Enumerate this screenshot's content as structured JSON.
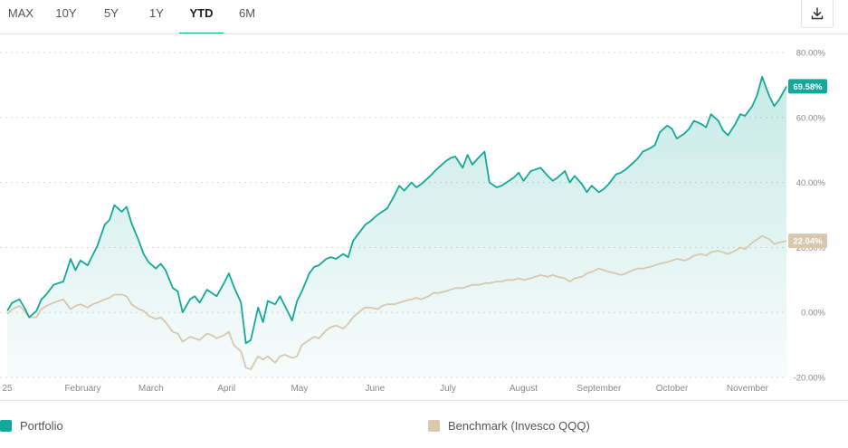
{
  "range_tabs": [
    "MAX",
    "10Y",
    "5Y",
    "1Y",
    "YTD",
    "6M"
  ],
  "active_tab": "YTD",
  "download_icon": "download-icon",
  "colors": {
    "portfolio": "#14a89a",
    "benchmark": "#d8c8ae",
    "grid": "#d9d9d9",
    "axis_text": "#888888"
  },
  "chart_data": {
    "type": "area",
    "x_unit": "2025 date (month-day)",
    "x_ticks": [
      "25",
      "February",
      "March",
      "April",
      "May",
      "June",
      "July",
      "August",
      "September",
      "October",
      "November"
    ],
    "y_ticks": [
      "80.00%",
      "60.00%",
      "40.00%",
      "20.00%",
      "0.00%",
      "-20.00%"
    ],
    "ylim": [
      -20,
      80
    ],
    "grid": "horizontal dashed",
    "legend_position": "bottom",
    "series": [
      {
        "name": "Portfolio",
        "end_label": "69.58%",
        "points": [
          [
            "01-01",
            0.5
          ],
          [
            "01-03",
            3.0
          ],
          [
            "01-06",
            4.0
          ],
          [
            "01-08",
            1.5
          ],
          [
            "01-10",
            -1.5
          ],
          [
            "01-13",
            0.5
          ],
          [
            "01-15",
            4.0
          ],
          [
            "01-17",
            5.5
          ],
          [
            "01-20",
            8.5
          ],
          [
            "01-22",
            9.0
          ],
          [
            "01-24",
            9.5
          ],
          [
            "01-27",
            16.5
          ],
          [
            "01-29",
            13.0
          ],
          [
            "01-31",
            16.0
          ],
          [
            "02-03",
            14.5
          ],
          [
            "02-05",
            17.5
          ],
          [
            "02-07",
            20.5
          ],
          [
            "02-10",
            27.0
          ],
          [
            "02-12",
            28.5
          ],
          [
            "02-14",
            33.0
          ],
          [
            "02-17",
            31.0
          ],
          [
            "02-19",
            32.5
          ],
          [
            "02-21",
            27.5
          ],
          [
            "02-24",
            22.0
          ],
          [
            "02-26",
            18.0
          ],
          [
            "02-28",
            15.5
          ],
          [
            "03-03",
            13.5
          ],
          [
            "03-05",
            15.0
          ],
          [
            "03-07",
            13.0
          ],
          [
            "03-10",
            7.5
          ],
          [
            "03-12",
            6.5
          ],
          [
            "03-14",
            0.0
          ],
          [
            "03-17",
            4.0
          ],
          [
            "03-19",
            5.0
          ],
          [
            "03-21",
            3.0
          ],
          [
            "03-24",
            7.0
          ],
          [
            "03-26",
            6.0
          ],
          [
            "03-28",
            5.0
          ],
          [
            "03-31",
            9.0
          ],
          [
            "04-02",
            12.0
          ],
          [
            "04-04",
            8.0
          ],
          [
            "04-07",
            3.0
          ],
          [
            "04-09",
            -9.5
          ],
          [
            "04-11",
            -8.5
          ],
          [
            "04-14",
            1.5
          ],
          [
            "04-16",
            -3.0
          ],
          [
            "04-18",
            3.5
          ],
          [
            "04-21",
            2.5
          ],
          [
            "04-23",
            5.0
          ],
          [
            "04-25",
            2.0
          ],
          [
            "04-28",
            -2.5
          ],
          [
            "04-30",
            3.5
          ],
          [
            "05-02",
            6.5
          ],
          [
            "05-05",
            12.0
          ],
          [
            "05-07",
            14.0
          ],
          [
            "05-09",
            14.5
          ],
          [
            "05-12",
            16.5
          ],
          [
            "05-14",
            17.0
          ],
          [
            "05-16",
            16.5
          ],
          [
            "05-19",
            18.0
          ],
          [
            "05-21",
            17.0
          ],
          [
            "05-23",
            22.0
          ],
          [
            "05-26",
            25.0
          ],
          [
            "05-28",
            27.0
          ],
          [
            "05-30",
            28.0
          ],
          [
            "06-02",
            30.0
          ],
          [
            "06-04",
            31.0
          ],
          [
            "06-06",
            32.0
          ],
          [
            "06-09",
            36.0
          ],
          [
            "06-11",
            39.0
          ],
          [
            "06-13",
            37.5
          ],
          [
            "06-16",
            40.0
          ],
          [
            "06-18",
            38.5
          ],
          [
            "06-20",
            39.5
          ],
          [
            "06-23",
            41.5
          ],
          [
            "06-25",
            43.0
          ],
          [
            "06-27",
            44.5
          ],
          [
            "06-30",
            46.5
          ],
          [
            "07-02",
            47.5
          ],
          [
            "07-04",
            48.0
          ],
          [
            "07-07",
            44.5
          ],
          [
            "07-09",
            48.5
          ],
          [
            "07-11",
            45.5
          ],
          [
            "07-14",
            48.0
          ],
          [
            "07-16",
            49.5
          ],
          [
            "07-18",
            40.0
          ],
          [
            "07-21",
            38.5
          ],
          [
            "07-23",
            39.0
          ],
          [
            "07-25",
            40.0
          ],
          [
            "07-28",
            41.5
          ],
          [
            "07-30",
            43.0
          ],
          [
            "08-01",
            40.5
          ],
          [
            "08-04",
            43.5
          ],
          [
            "08-06",
            44.0
          ],
          [
            "08-08",
            44.5
          ],
          [
            "08-11",
            42.0
          ],
          [
            "08-13",
            40.5
          ],
          [
            "08-15",
            41.5
          ],
          [
            "08-18",
            43.5
          ],
          [
            "08-20",
            40.0
          ],
          [
            "08-22",
            42.0
          ],
          [
            "08-25",
            39.5
          ],
          [
            "08-27",
            37.0
          ],
          [
            "08-29",
            39.0
          ],
          [
            "09-01",
            37.0
          ],
          [
            "09-03",
            38.0
          ],
          [
            "09-05",
            39.5
          ],
          [
            "09-08",
            42.5
          ],
          [
            "09-10",
            43.0
          ],
          [
            "09-12",
            44.0
          ],
          [
            "09-15",
            46.0
          ],
          [
            "09-17",
            47.5
          ],
          [
            "09-19",
            49.5
          ],
          [
            "09-22",
            50.5
          ],
          [
            "09-24",
            51.5
          ],
          [
            "09-26",
            55.5
          ],
          [
            "09-29",
            57.5
          ],
          [
            "10-01",
            56.5
          ],
          [
            "10-03",
            53.5
          ],
          [
            "10-06",
            55.0
          ],
          [
            "10-08",
            56.5
          ],
          [
            "10-10",
            59.0
          ],
          [
            "10-13",
            58.0
          ],
          [
            "10-15",
            57.0
          ],
          [
            "10-17",
            61.0
          ],
          [
            "10-20",
            59.0
          ],
          [
            "10-22",
            56.0
          ],
          [
            "10-24",
            54.5
          ],
          [
            "10-27",
            58.0
          ],
          [
            "10-29",
            61.0
          ],
          [
            "10-31",
            60.5
          ],
          [
            "11-03",
            63.5
          ],
          [
            "11-05",
            67.0
          ],
          [
            "11-07",
            72.5
          ],
          [
            "11-10",
            66.5
          ],
          [
            "11-12",
            63.5
          ],
          [
            "11-14",
            65.5
          ],
          [
            "11-17",
            69.58
          ]
        ]
      },
      {
        "name": "Benchmark (Invesco QQQ)",
        "end_label": "22.04%",
        "points": [
          [
            "01-01",
            -0.5
          ],
          [
            "01-03",
            1.0
          ],
          [
            "01-06",
            2.0
          ],
          [
            "01-08",
            0.5
          ],
          [
            "01-10",
            -1.5
          ],
          [
            "01-13",
            -1.5
          ],
          [
            "01-15",
            1.0
          ],
          [
            "01-17",
            2.0
          ],
          [
            "01-20",
            3.0
          ],
          [
            "01-22",
            3.5
          ],
          [
            "01-24",
            4.0
          ],
          [
            "01-27",
            1.0
          ],
          [
            "01-29",
            2.0
          ],
          [
            "01-31",
            2.5
          ],
          [
            "02-03",
            1.5
          ],
          [
            "02-05",
            2.5
          ],
          [
            "02-07",
            3.0
          ],
          [
            "02-10",
            4.0
          ],
          [
            "02-12",
            4.5
          ],
          [
            "02-14",
            5.5
          ],
          [
            "02-17",
            5.5
          ],
          [
            "02-19",
            5.0
          ],
          [
            "02-21",
            2.5
          ],
          [
            "02-24",
            1.0
          ],
          [
            "02-26",
            0.5
          ],
          [
            "02-28",
            -1.0
          ],
          [
            "03-03",
            -2.0
          ],
          [
            "03-05",
            -1.5
          ],
          [
            "03-07",
            -3.0
          ],
          [
            "03-10",
            -6.0
          ],
          [
            "03-12",
            -6.5
          ],
          [
            "03-14",
            -9.0
          ],
          [
            "03-17",
            -7.5
          ],
          [
            "03-19",
            -8.0
          ],
          [
            "03-21",
            -8.5
          ],
          [
            "03-24",
            -6.5
          ],
          [
            "03-26",
            -7.0
          ],
          [
            "03-28",
            -8.0
          ],
          [
            "03-31",
            -7.0
          ],
          [
            "04-02",
            -6.0
          ],
          [
            "04-04",
            -10.0
          ],
          [
            "04-07",
            -12.0
          ],
          [
            "04-09",
            -17.0
          ],
          [
            "04-11",
            -17.5
          ],
          [
            "04-14",
            -13.5
          ],
          [
            "04-16",
            -14.5
          ],
          [
            "04-18",
            -13.5
          ],
          [
            "04-21",
            -15.5
          ],
          [
            "04-23",
            -13.5
          ],
          [
            "04-25",
            -13.0
          ],
          [
            "04-28",
            -14.0
          ],
          [
            "04-30",
            -13.5
          ],
          [
            "05-02",
            -10.0
          ],
          [
            "05-05",
            -8.5
          ],
          [
            "05-07",
            -7.5
          ],
          [
            "05-09",
            -8.0
          ],
          [
            "05-12",
            -5.5
          ],
          [
            "05-14",
            -4.5
          ],
          [
            "05-16",
            -4.0
          ],
          [
            "05-19",
            -5.0
          ],
          [
            "05-21",
            -3.5
          ],
          [
            "05-23",
            -1.5
          ],
          [
            "05-26",
            0.5
          ],
          [
            "05-28",
            1.5
          ],
          [
            "05-30",
            1.5
          ],
          [
            "06-02",
            1.0
          ],
          [
            "06-04",
            2.0
          ],
          [
            "06-06",
            2.5
          ],
          [
            "06-09",
            2.5
          ],
          [
            "06-11",
            3.0
          ],
          [
            "06-13",
            3.5
          ],
          [
            "06-16",
            4.0
          ],
          [
            "06-18",
            4.5
          ],
          [
            "06-20",
            4.0
          ],
          [
            "06-23",
            5.0
          ],
          [
            "06-25",
            6.0
          ],
          [
            "06-27",
            6.0
          ],
          [
            "06-30",
            6.5
          ],
          [
            "07-02",
            7.0
          ],
          [
            "07-04",
            7.5
          ],
          [
            "07-07",
            7.5
          ],
          [
            "07-09",
            8.0
          ],
          [
            "07-11",
            8.5
          ],
          [
            "07-14",
            8.5
          ],
          [
            "07-16",
            9.0
          ],
          [
            "07-18",
            9.0
          ],
          [
            "07-21",
            9.5
          ],
          [
            "07-23",
            9.5
          ],
          [
            "07-25",
            10.0
          ],
          [
            "07-28",
            10.0
          ],
          [
            "07-30",
            10.5
          ],
          [
            "08-01",
            10.0
          ],
          [
            "08-04",
            10.5
          ],
          [
            "08-06",
            11.0
          ],
          [
            "08-08",
            11.5
          ],
          [
            "08-11",
            11.0
          ],
          [
            "08-13",
            11.5
          ],
          [
            "08-15",
            11.0
          ],
          [
            "08-18",
            10.5
          ],
          [
            "08-20",
            9.5
          ],
          [
            "08-22",
            10.5
          ],
          [
            "08-25",
            11.0
          ],
          [
            "08-27",
            12.0
          ],
          [
            "08-29",
            12.5
          ],
          [
            "09-01",
            13.5
          ],
          [
            "09-03",
            13.0
          ],
          [
            "09-05",
            12.5
          ],
          [
            "09-08",
            12.0
          ],
          [
            "09-10",
            11.5
          ],
          [
            "09-12",
            12.0
          ],
          [
            "09-15",
            13.0
          ],
          [
            "09-17",
            13.5
          ],
          [
            "09-19",
            13.5
          ],
          [
            "09-22",
            14.0
          ],
          [
            "09-24",
            14.5
          ],
          [
            "09-26",
            15.0
          ],
          [
            "09-29",
            15.5
          ],
          [
            "10-01",
            16.0
          ],
          [
            "10-03",
            16.5
          ],
          [
            "10-06",
            16.0
          ],
          [
            "10-08",
            16.5
          ],
          [
            "10-10",
            17.5
          ],
          [
            "10-13",
            18.0
          ],
          [
            "10-15",
            17.5
          ],
          [
            "10-17",
            18.5
          ],
          [
            "10-20",
            19.0
          ],
          [
            "10-22",
            18.5
          ],
          [
            "10-24",
            18.0
          ],
          [
            "10-27",
            19.0
          ],
          [
            "10-29",
            20.0
          ],
          [
            "10-31",
            19.5
          ],
          [
            "11-03",
            21.5
          ],
          [
            "11-05",
            22.5
          ],
          [
            "11-07",
            23.5
          ],
          [
            "11-10",
            22.5
          ],
          [
            "11-12",
            21.0
          ],
          [
            "11-14",
            21.5
          ],
          [
            "11-17",
            22.04
          ]
        ]
      }
    ]
  },
  "legend": {
    "portfolio_label": "Portfolio",
    "benchmark_label": "Benchmark (Invesco QQQ)"
  }
}
